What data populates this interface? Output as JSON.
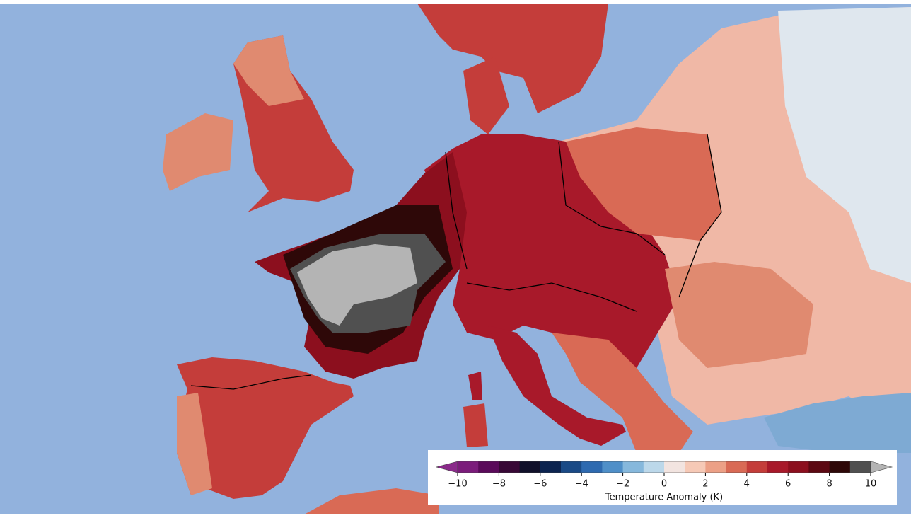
{
  "colorbar": {
    "label": "Temperature Anomaly (K)",
    "range": [
      -10,
      10
    ],
    "ticks": [
      {
        "value": -10,
        "label": "−10"
      },
      {
        "value": -8,
        "label": "−8"
      },
      {
        "value": -6,
        "label": "−6"
      },
      {
        "value": -4,
        "label": "−4"
      },
      {
        "value": -2,
        "label": "−2"
      },
      0,
      2,
      4,
      6,
      8,
      10
    ],
    "colors": [
      "#7b1c7b",
      "#5a0a5a",
      "#380836",
      "#10102a",
      "#0c2450",
      "#1a4a86",
      "#2e6ab0",
      "#4f8fc8",
      "#86b8dc",
      "#bcd8ea",
      "#f2e4e0",
      "#f6c9b6",
      "#eca086",
      "#d96a55",
      "#c43d3a",
      "#a8192a",
      "#8c0f1e",
      "#5c0812",
      "#2e0808",
      "#505050"
    ],
    "extend_low_color": "#8a2a8a",
    "extend_high_color": "#b4b4b4"
  }
}
